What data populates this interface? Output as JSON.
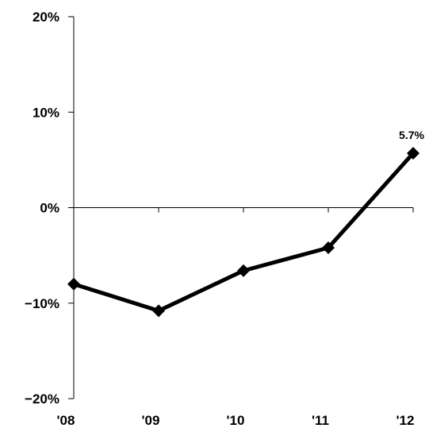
{
  "chart_data": {
    "type": "line",
    "categories": [
      "'08",
      "'09",
      "'10",
      "'11",
      "'12"
    ],
    "series": [
      {
        "values": [
          -8.0,
          -10.8,
          -6.6,
          -4.2,
          5.7
        ],
        "color": "#000000"
      }
    ],
    "ylim": [
      -20,
      20
    ],
    "yticks": [
      20,
      10,
      0,
      -10,
      -20
    ],
    "ytick_labels": [
      "20%",
      "10%",
      "0%",
      "−10%",
      "−20%"
    ],
    "data_labels": [
      {
        "index": 4,
        "text": "5.7%"
      }
    ],
    "zero_line": true,
    "grid": false,
    "legend": "none"
  }
}
